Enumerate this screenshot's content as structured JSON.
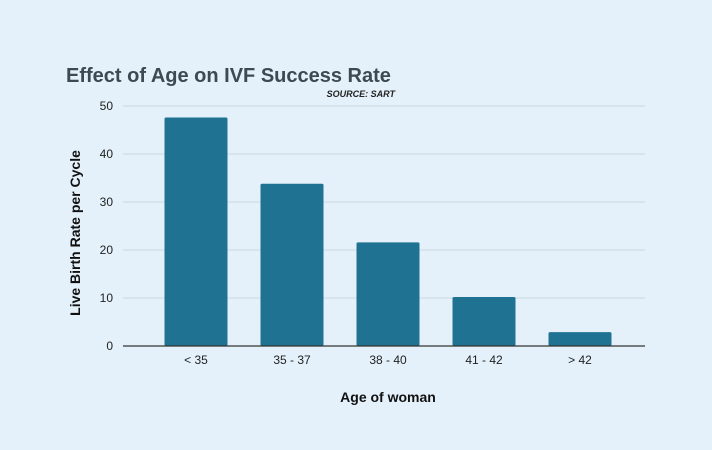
{
  "chart_data": {
    "type": "bar",
    "title": "Effect of Age on IVF Success Rate",
    "subtitle": "SOURCE: SART",
    "xlabel": "Age of woman",
    "ylabel": "Live Birth Rate per Cycle",
    "categories": [
      "< 35",
      "35 - 37",
      "38 - 40",
      "41 - 42",
      "> 42"
    ],
    "values": [
      47.6,
      33.8,
      21.6,
      10.2,
      2.9
    ],
    "ylim": [
      0,
      50
    ],
    "yticks": [
      0,
      10,
      20,
      30,
      40,
      50
    ],
    "grid": true,
    "bar_color": "#1f7291",
    "background": "#e4f1fa"
  }
}
